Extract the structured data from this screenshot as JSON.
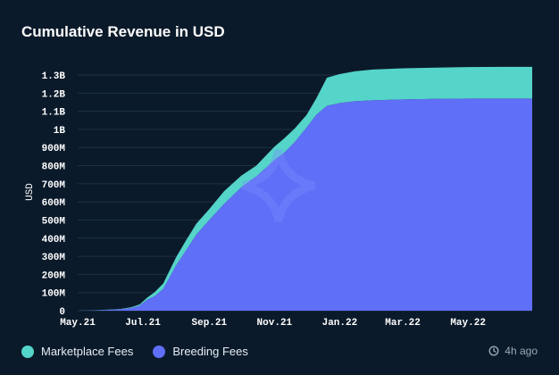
{
  "title": "Cumulative Revenue in USD",
  "updated": "4h ago",
  "colors": {
    "background": "#0b1a2a",
    "marketplace": "#55d4c9",
    "breeding": "#5f6ff7",
    "grid": "#1c3144"
  },
  "legend": [
    {
      "label": "Marketplace Fees",
      "color": "#55d4c9"
    },
    {
      "label": "Breeding Fees",
      "color": "#5f6ff7"
    }
  ],
  "chart_data": {
    "type": "area",
    "stacked": true,
    "ylabel": "USD",
    "xlabel": "",
    "ylim": [
      0,
      1300000000
    ],
    "yticks": [
      0,
      100000000,
      200000000,
      300000000,
      400000000,
      500000000,
      600000000,
      700000000,
      800000000,
      900000000,
      1000000000,
      1100000000,
      1200000000,
      1300000000
    ],
    "ytick_labels": [
      "0",
      "100M",
      "200M",
      "300M",
      "400M",
      "500M",
      "600M",
      "700M",
      "800M",
      "900M",
      "1B",
      "1.1B",
      "1.2B",
      "1.3B"
    ],
    "xlim": [
      "2021-05-01",
      "2022-06-30"
    ],
    "xticks": [
      "2021-05-01",
      "2021-07-01",
      "2021-09-01",
      "2021-11-01",
      "2022-01-01",
      "2022-03-01",
      "2022-05-01"
    ],
    "xtick_labels": [
      "May.21",
      "Jul.21",
      "Sep.21",
      "Nov.21",
      "Jan.22",
      "Mar.22",
      "May.22"
    ],
    "grid": true,
    "legend_position": "bottom-left",
    "x": [
      "2021-05-01",
      "2021-05-20",
      "2021-06-10",
      "2021-06-20",
      "2021-06-28",
      "2021-07-05",
      "2021-07-12",
      "2021-07-20",
      "2021-08-01",
      "2021-08-10",
      "2021-08-20",
      "2021-09-01",
      "2021-09-15",
      "2021-10-01",
      "2021-10-15",
      "2021-11-01",
      "2021-11-10",
      "2021-11-20",
      "2021-12-01",
      "2021-12-10",
      "2021-12-20",
      "2022-01-01",
      "2022-01-15",
      "2022-02-01",
      "2022-03-01",
      "2022-04-01",
      "2022-05-01",
      "2022-06-01",
      "2022-06-30"
    ],
    "series": [
      {
        "name": "Breeding Fees",
        "values": [
          0,
          2000000,
          8000000,
          15000000,
          28000000,
          60000000,
          80000000,
          120000000,
          250000000,
          330000000,
          420000000,
          500000000,
          590000000,
          680000000,
          740000000,
          830000000,
          870000000,
          930000000,
          1010000000,
          1080000000,
          1130000000,
          1145000000,
          1155000000,
          1160000000,
          1165000000,
          1168000000,
          1170000000,
          1170000000,
          1170000000
        ]
      },
      {
        "name": "Marketplace Fees",
        "values": [
          0,
          1000000,
          2000000,
          4000000,
          7000000,
          12000000,
          22000000,
          30000000,
          45000000,
          55000000,
          60000000,
          60000000,
          70000000,
          65000000,
          60000000,
          75000000,
          80000000,
          75000000,
          70000000,
          90000000,
          155000000,
          160000000,
          165000000,
          170000000,
          172000000,
          173000000,
          174000000,
          175000000,
          175000000
        ]
      }
    ]
  }
}
